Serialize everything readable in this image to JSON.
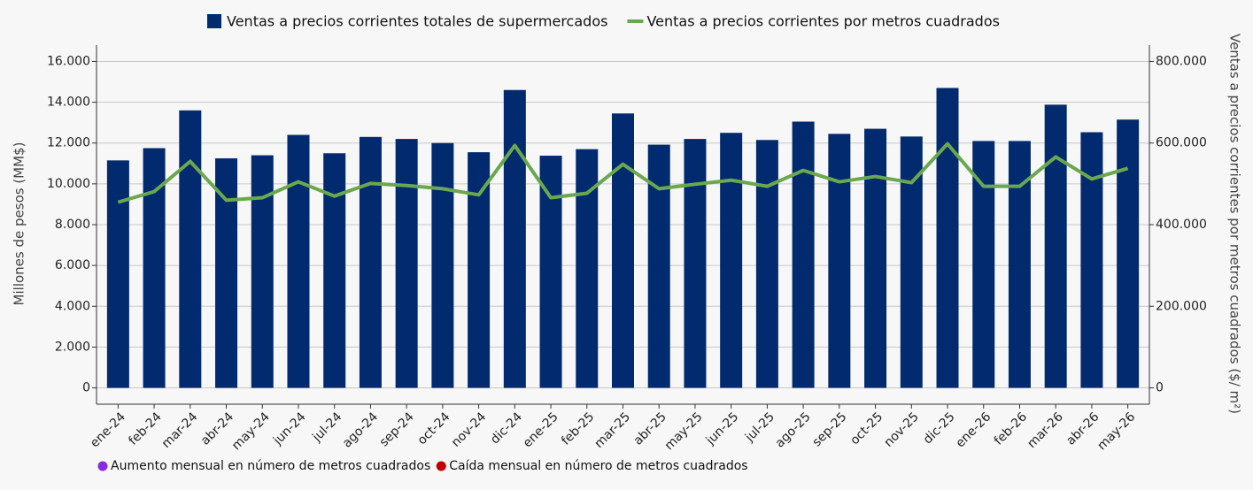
{
  "chart_data": {
    "type": "bar-line",
    "categories": [
      "ene-24",
      "feb-24",
      "mar-24",
      "abr-24",
      "may-24",
      "jun-24",
      "jul-24",
      "ago-24",
      "sep-24",
      "oct-24",
      "nov-24",
      "dic-24",
      "ene-25",
      "feb-25",
      "mar-25",
      "abr-25",
      "may-25",
      "jun-25",
      "jul-25",
      "ago-25",
      "sep-25",
      "oct-25",
      "nov-25",
      "dic-25",
      "ene-26",
      "feb-26",
      "mar-26",
      "abr-26",
      "may-26"
    ],
    "series": [
      {
        "name": "Ventas a precios corrientes totales de supermercados",
        "type": "bar",
        "color": "#022a6e",
        "values": [
          11150,
          11750,
          13600,
          11250,
          11400,
          12400,
          11500,
          12300,
          12200,
          12000,
          11550,
          14600,
          11380,
          11700,
          13450,
          11920,
          12200,
          12500,
          12150,
          13050,
          12450,
          12700,
          12320,
          14700,
          12100,
          12100,
          13880,
          12530,
          13150
        ]
      },
      {
        "name": "Ventas a precios corrientes por metros cuadrados",
        "type": "line",
        "axis": "y2",
        "color": "#6aa84f",
        "values": [
          455000,
          481000,
          555000,
          460000,
          466000,
          505000,
          470000,
          501000,
          496000,
          488000,
          473000,
          594000,
          466000,
          477000,
          548000,
          488000,
          499000,
          509000,
          494000,
          533000,
          505000,
          518000,
          503000,
          598000,
          494000,
          494000,
          566000,
          512000,
          538000
        ]
      }
    ],
    "ylabel": "Millones de pesos (MM$)",
    "y2label": "Ventas a precios corrientes por metros cuadrados  ($/ m²)",
    "ylim": [
      -800,
      16800
    ],
    "yticks": [
      0,
      {
        "value": 2000,
        "label": "2.000"
      },
      {
        "value": 4000,
        "label": "4.000"
      },
      {
        "value": 6000,
        "label": "6.000"
      },
      {
        "value": 8000,
        "label": "8.000"
      },
      {
        "value": 10000,
        "label": "10.000"
      },
      {
        "value": 12000,
        "label": "12.000"
      },
      {
        "value": 14000,
        "label": "14.000"
      },
      {
        "value": 16000,
        "label": "16.000"
      }
    ],
    "y2lim": [
      -40000,
      840000
    ],
    "y2ticks": [
      0,
      {
        "value": 200000,
        "label": "200.000"
      },
      {
        "value": 400000,
        "label": "400.000"
      },
      {
        "value": 600000,
        "label": "600.000"
      },
      {
        "value": 800000,
        "label": "800.000"
      }
    ],
    "grid": true,
    "legend": "top",
    "notes": [
      {
        "name": "Aumento mensual en número de metros cuadrados",
        "color": "#8a2be2"
      },
      {
        "name": "Caída mensual en número de metros cuadrados",
        "color": "#c00000"
      }
    ]
  }
}
